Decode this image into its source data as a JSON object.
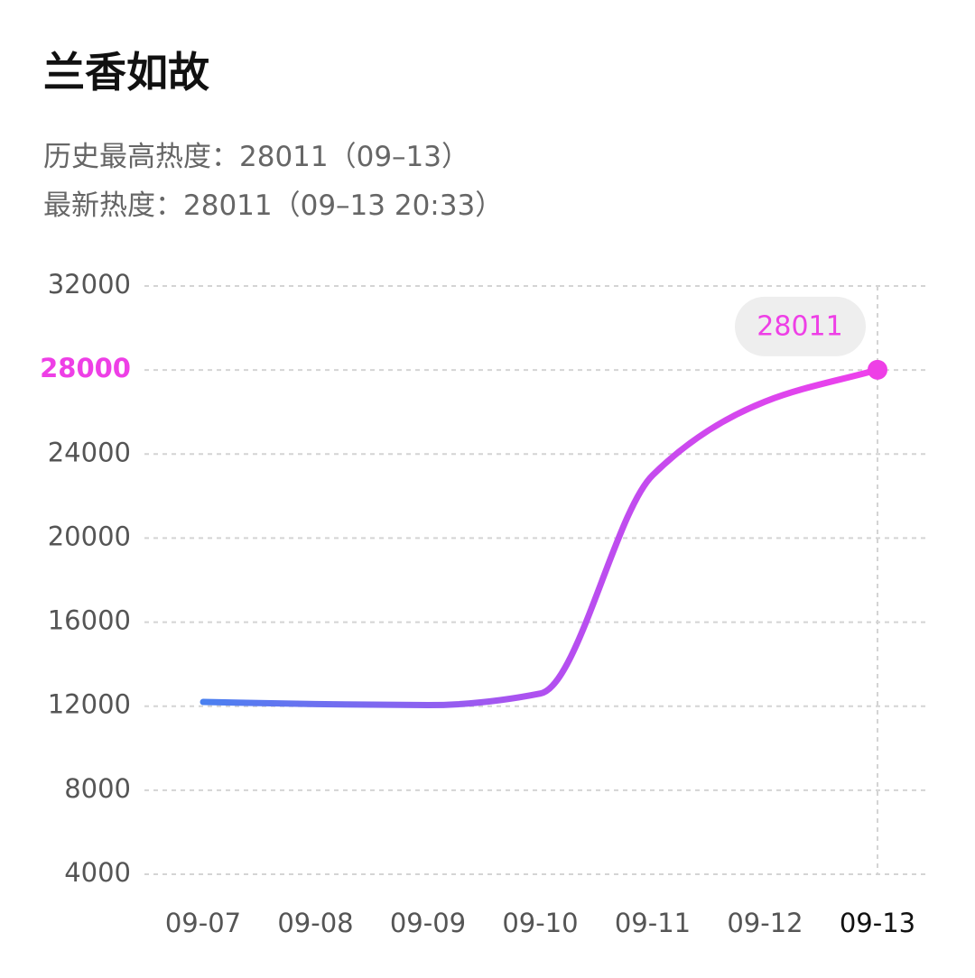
{
  "header": {
    "title": "兰香如故",
    "peak": "历史最高热度：28011（09–13）",
    "latest": "最新热度：28011（09–13 20:33）"
  },
  "chart_data": {
    "type": "line",
    "categories": [
      "09-07",
      "09-08",
      "09-09",
      "09-10",
      "09-11",
      "09-12",
      "09-13"
    ],
    "series": [
      {
        "values": [
          12200,
          12100,
          12050,
          12600,
          23000,
          26500,
          28011
        ],
        "colors": [
          "#4a80f0",
          "#b050f0",
          "#f040ec"
        ]
      }
    ],
    "ylim": [
      4000,
      32000
    ],
    "yticks": [
      4000,
      8000,
      12000,
      16000,
      20000,
      24000,
      28000,
      32000
    ],
    "grid": true,
    "highlight_color": "#ee3fe6"
  }
}
